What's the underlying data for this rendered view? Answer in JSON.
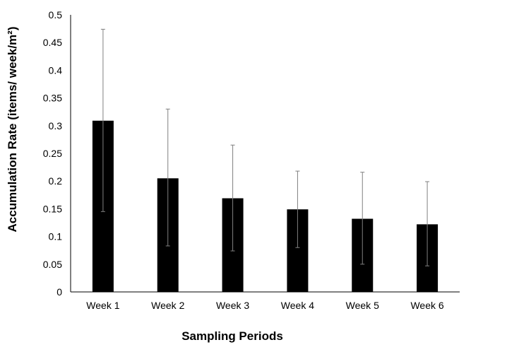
{
  "chart_data": {
    "type": "bar",
    "title": "",
    "xlabel": "Sampling Periods",
    "ylabel": "Accumulation Rate (items/ week/m²)",
    "categories": [
      "Week 1",
      "Week 2",
      "Week 3",
      "Week 4",
      "Week 5",
      "Week 6"
    ],
    "values": [
      0.309,
      0.205,
      0.169,
      0.149,
      0.132,
      0.122
    ],
    "error_upper": [
      0.474,
      0.33,
      0.265,
      0.218,
      0.216,
      0.199
    ],
    "error_lower": [
      0.145,
      0.083,
      0.074,
      0.08,
      0.05,
      0.047
    ],
    "ylim": [
      0,
      0.5
    ],
    "yticks": [
      "0",
      "0.05",
      "0.1",
      "0.15",
      "0.2",
      "0.25",
      "0.3",
      "0.35",
      "0.4",
      "0.45",
      "0.5"
    ],
    "grid": false,
    "legend": "none",
    "colors": {
      "bar": "#000000",
      "error_bar": "#808080",
      "axis": "#000000"
    }
  }
}
